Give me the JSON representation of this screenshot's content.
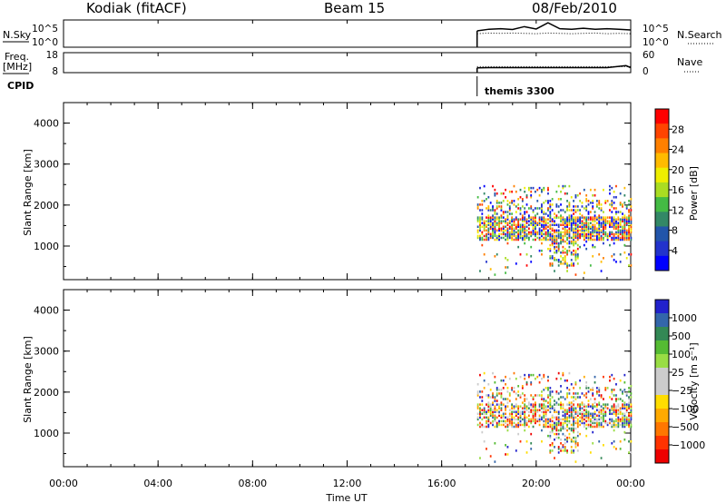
{
  "header": {
    "station": "Kodiak (fitACF)",
    "beam": "Beam 15",
    "date": "08/Feb/2010"
  },
  "nsky_panel": {
    "left_label": "N.Sky",
    "left_ticks": [
      "10^5",
      "10^0"
    ],
    "right_ticks": [
      "10^5",
      "10^0"
    ],
    "right_label": "N.Search"
  },
  "freq_panel": {
    "left_label_1": "Freq.",
    "left_label_2": "[MHz]",
    "left_ticks": [
      "18",
      "8"
    ],
    "right_ticks": [
      "60",
      "0"
    ],
    "right_label": "Nave"
  },
  "cpid": {
    "label": "CPID",
    "program": "themis 3300",
    "start_hour": 17.5
  },
  "x_axis": {
    "label": "Time UT",
    "ticks": [
      "00:00",
      "04:00",
      "08:00",
      "12:00",
      "16:00",
      "20:00",
      "00:00"
    ]
  },
  "power_colorbar": {
    "title": "Power [dB]",
    "ticks": [
      "28",
      "24",
      "20",
      "16",
      "12",
      "8",
      "4"
    ],
    "colors": [
      "#ff0000",
      "#ff4400",
      "#ff8000",
      "#ffbb00",
      "#eeee00",
      "#aadd22",
      "#44bb44",
      "#338866",
      "#2255aa",
      "#2233cc",
      "#0000ff"
    ]
  },
  "velocity_colorbar": {
    "title": "Velocity  [m s⁻¹]",
    "ticks": [
      "1000",
      "500",
      "100",
      "25",
      "−25",
      "−100",
      "−500",
      "−1000"
    ],
    "colors": [
      "#2222cc",
      "#3366aa",
      "#338855",
      "#55bb33",
      "#99dd44",
      "#cccccc",
      "#cccccc",
      "#ffdd00",
      "#ffaa00",
      "#ff7700",
      "#ff3300",
      "#ee0000"
    ]
  },
  "chart_data": [
    {
      "type": "line",
      "title": "N.Sky / N.Search",
      "xlabel": "",
      "ylabel": "N.Sky",
      "x": [
        17.5,
        18.0,
        18.5,
        19.0,
        19.5,
        20.0,
        20.5,
        21.0,
        21.5,
        22.0,
        22.5,
        23.0,
        23.5,
        24.0
      ],
      "series": [
        {
          "name": "N.Sky",
          "values": [
            1000,
            2000,
            2500,
            1800,
            6000,
            2200,
            30000,
            2500,
            2000,
            3000,
            2000,
            2500,
            2000,
            1500
          ]
        },
        {
          "name": "N.Search",
          "values": [
            300,
            400,
            350,
            400,
            350,
            300,
            400,
            350,
            300,
            350,
            400,
            300,
            350,
            300
          ]
        }
      ],
      "ylim": [
        1,
        100000
      ],
      "yscale": "log"
    },
    {
      "type": "line",
      "title": "Freq / Nave",
      "xlabel": "",
      "ylabel": "Freq. [MHz]",
      "x": [
        17.5,
        18.0,
        19.0,
        20.0,
        21.0,
        22.0,
        23.0,
        23.8,
        24.0
      ],
      "series": [
        {
          "name": "Freq.",
          "values": [
            10.4,
            10.5,
            10.5,
            10.5,
            10.5,
            10.5,
            10.5,
            11.5,
            10.5
          ]
        },
        {
          "name": "Nave",
          "values": [
            18,
            18,
            18,
            18,
            18,
            18,
            18,
            18,
            18
          ]
        }
      ],
      "ylim": [
        8,
        18
      ]
    },
    {
      "type": "heatmap",
      "title": "Power [dB]",
      "xlabel": "Time UT",
      "ylabel": "Slant Range [km]",
      "xlim": [
        0,
        24
      ],
      "ylim": [
        180,
        4500
      ],
      "x_range_data": [
        17.5,
        24
      ],
      "y_range_data": [
        300,
        2500
      ],
      "scale": [
        0,
        30
      ]
    },
    {
      "type": "heatmap",
      "title": "Velocity [m s-1]",
      "xlabel": "Time UT",
      "ylabel": "Slant Range [km]",
      "xlim": [
        0,
        24
      ],
      "ylim": [
        180,
        4500
      ],
      "x_range_data": [
        17.5,
        24
      ],
      "y_range_data": [
        300,
        2500
      ],
      "scale": [
        -1000,
        1000
      ]
    }
  ]
}
